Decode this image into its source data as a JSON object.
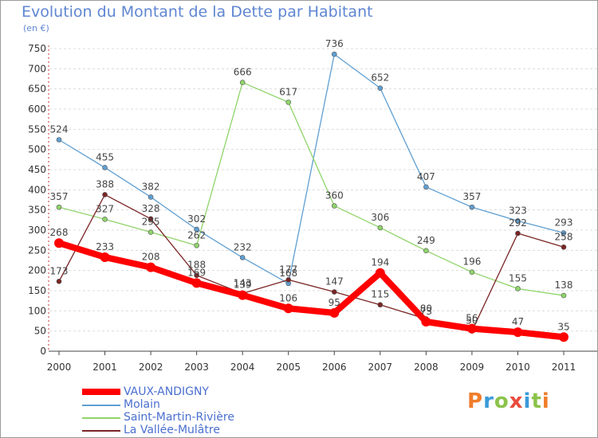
{
  "title": "Evolution du Montant de la Dette par Habitant",
  "subtitle": "(en €)",
  "logo_text": "Proxiti",
  "chart_data": {
    "type": "line",
    "title": "Evolution du Montant de la Dette par Habitant",
    "subtitle": "(en €)",
    "xlabel": "",
    "ylabel": "",
    "x": [
      "2000",
      "2001",
      "2002",
      "2003",
      "2004",
      "2005",
      "2006",
      "2007",
      "2008",
      "2009",
      "2010",
      "2011"
    ],
    "ylim": [
      0,
      750
    ],
    "yticks": [
      0,
      50,
      100,
      150,
      200,
      250,
      300,
      350,
      400,
      450,
      500,
      550,
      600,
      650,
      700,
      750
    ],
    "grid": "horizontal dashed",
    "legend_position": "bottom-left",
    "series": [
      {
        "name": "VAUX-ANDIGNY",
        "color": "#ff0000",
        "values": [
          268,
          233,
          208,
          169,
          139,
          106,
          95,
          194,
          73,
          56,
          47,
          35
        ],
        "thick": true
      },
      {
        "name": "Molain",
        "color": "#5f9fd2",
        "values": [
          524,
          455,
          382,
          302,
          232,
          168,
          736,
          652,
          407,
          357,
          323,
          293
        ]
      },
      {
        "name": "Saint-Martin-Rivière",
        "color": "#8fd46a",
        "values": [
          357,
          327,
          295,
          262,
          666,
          617,
          360,
          306,
          249,
          196,
          155,
          138
        ]
      },
      {
        "name": "La Vallée-Mulâtre",
        "color": "#7a2424",
        "values": [
          173,
          388,
          328,
          188,
          143,
          177,
          147,
          115,
          80,
          50,
          292,
          258
        ]
      }
    ]
  }
}
